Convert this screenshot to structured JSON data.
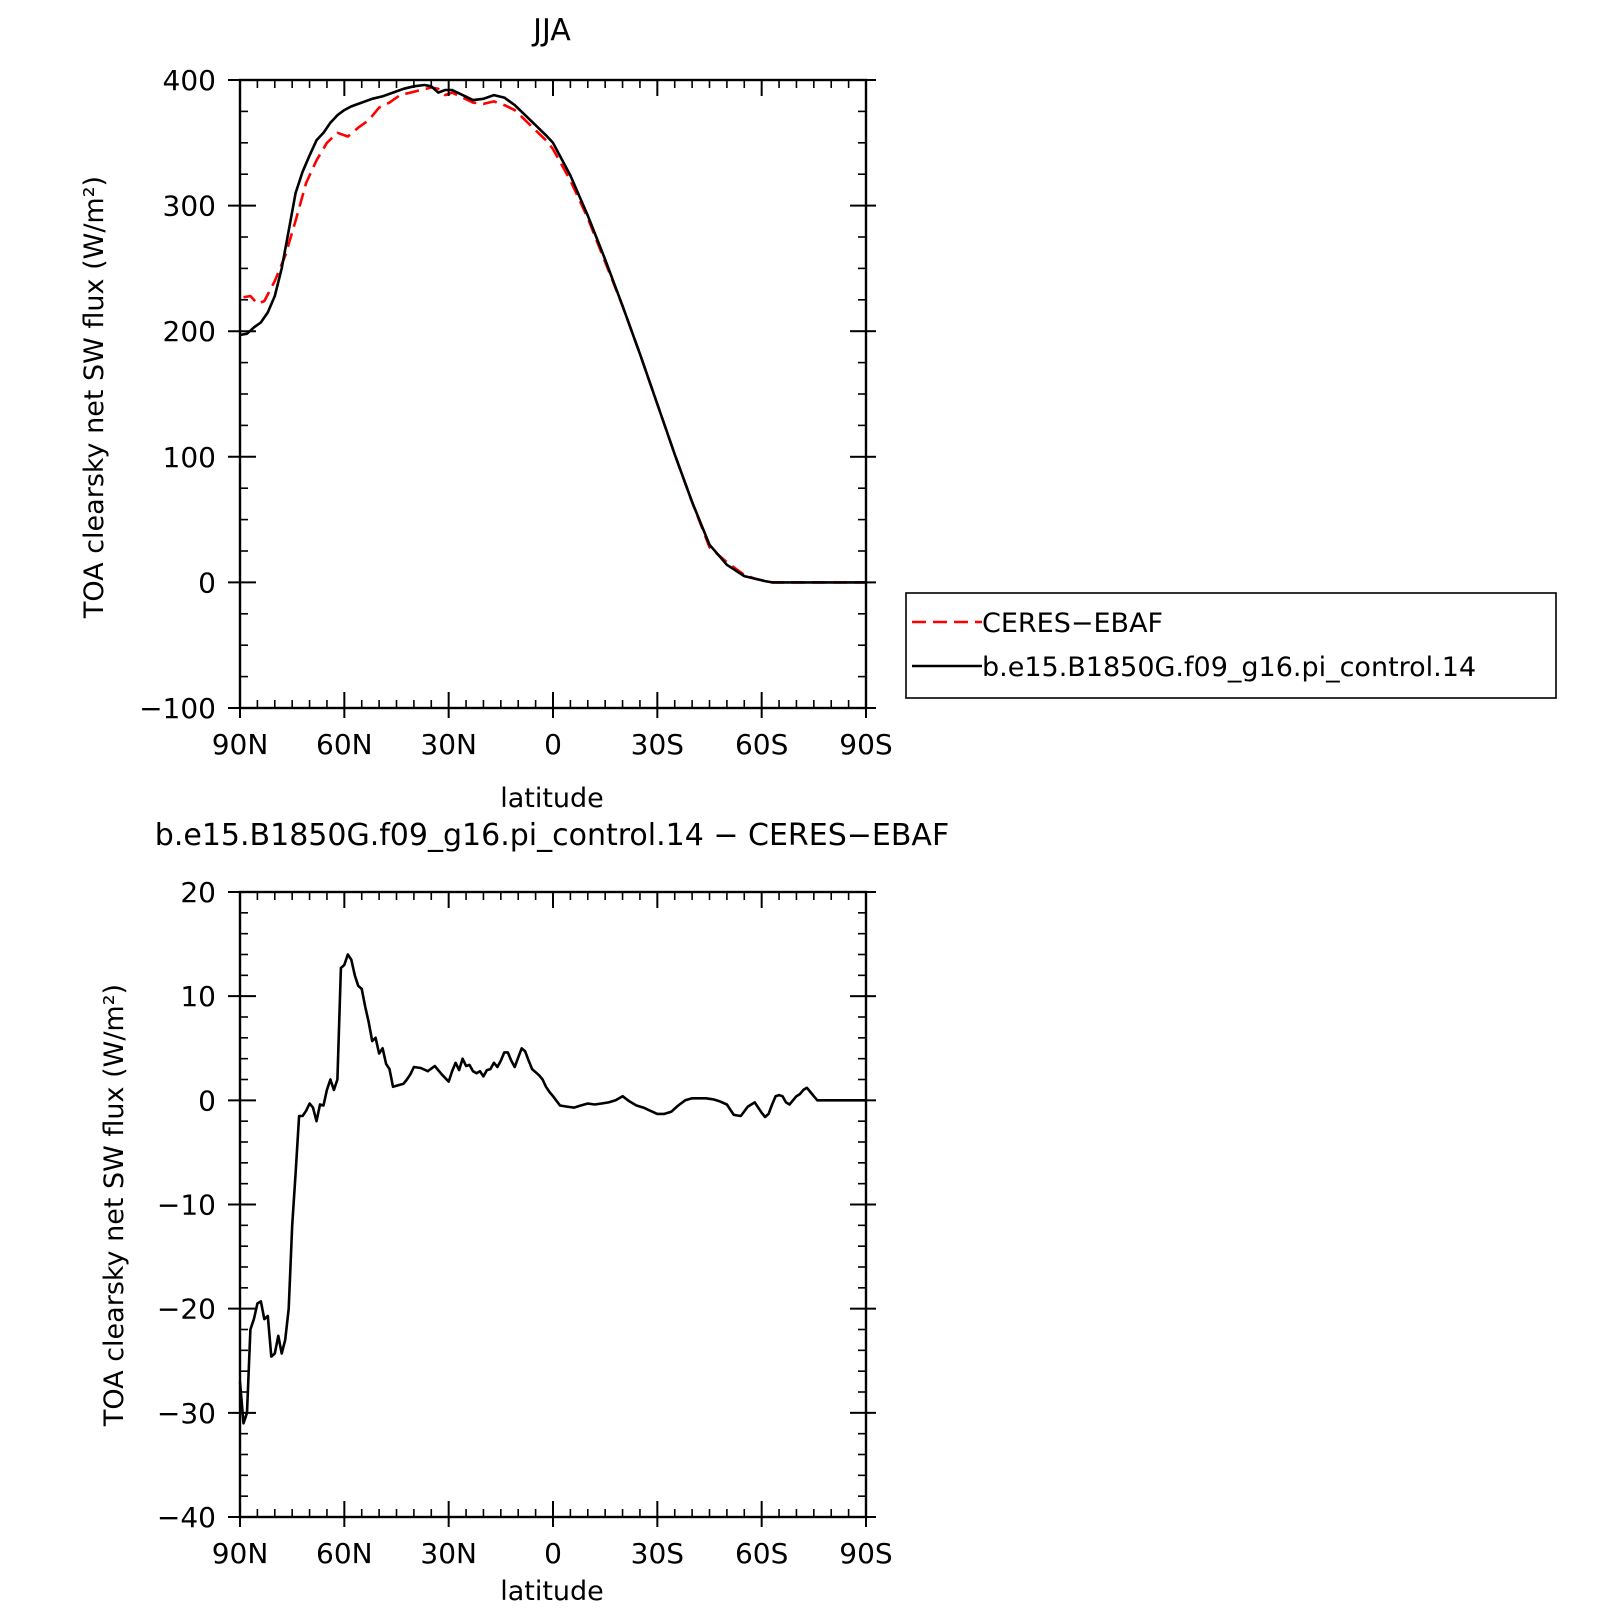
{
  "chart_data": [
    {
      "type": "line",
      "title": "JJA",
      "xlabel": "latitude",
      "ylabel": "TOA clearsky net SW flux (W/m²)",
      "xlim": [
        90,
        -90
      ],
      "ylim": [
        -100,
        400
      ],
      "x_ticks": [
        90,
        60,
        30,
        0,
        -30,
        -60,
        -90
      ],
      "x_tick_labels": [
        "90N",
        "60N",
        "30N",
        "0",
        "30S",
        "60S",
        "90S"
      ],
      "y_ticks": [
        -100,
        0,
        100,
        200,
        300,
        400
      ],
      "y_tick_labels": [
        "−100",
        "0",
        "100",
        "200",
        "300",
        "400"
      ],
      "grid": false,
      "legend": {
        "position": "right",
        "boxed": true
      },
      "series": [
        {
          "name": "CERES−EBAF",
          "color": "#ff0000",
          "dash": "dashed",
          "x": [
            89,
            87,
            85,
            83,
            80,
            77,
            74,
            71,
            68,
            65,
            62,
            59,
            56,
            53,
            50,
            47,
            44,
            41,
            38,
            35,
            33,
            31,
            29,
            26,
            23,
            20,
            17,
            14,
            11,
            8,
            5,
            2,
            0,
            -5,
            -10,
            -15,
            -20,
            -25,
            -30,
            -35,
            -40,
            -45,
            -50,
            -55,
            -58,
            -61,
            -63,
            -65,
            -68,
            -72,
            -76,
            -80,
            -85,
            -90
          ],
          "y": [
            227,
            228,
            222,
            224,
            240,
            260,
            288,
            318,
            336,
            350,
            358,
            355,
            362,
            368,
            378,
            382,
            388,
            390,
            392,
            394,
            393,
            388,
            390,
            386,
            382,
            381,
            383,
            380,
            376,
            368,
            360,
            352,
            345,
            320,
            290,
            255,
            220,
            182,
            142,
            102,
            64,
            28,
            16,
            6,
            3,
            1,
            0,
            0,
            0,
            0,
            0,
            0,
            0,
            0
          ]
        },
        {
          "name": "b.e15.B1850G.f09_g16.pi_control.14",
          "color": "#000000",
          "dash": "solid",
          "x": [
            90,
            88,
            86,
            84,
            82,
            80,
            78,
            76,
            74,
            72,
            70,
            68,
            66,
            64,
            62,
            60,
            58,
            55,
            52,
            49,
            46,
            43,
            40,
            37,
            35,
            33,
            31,
            29,
            26,
            23,
            20,
            17,
            14,
            11,
            8,
            5,
            2,
            0,
            -5,
            -10,
            -15,
            -20,
            -25,
            -30,
            -35,
            -40,
            -45,
            -50,
            -55,
            -58,
            -61,
            -63,
            -65,
            -68,
            -72,
            -76,
            -80,
            -85,
            -90
          ],
          "y": [
            197,
            198,
            203,
            207,
            215,
            228,
            250,
            280,
            310,
            327,
            340,
            352,
            358,
            366,
            372,
            376,
            379,
            382,
            385,
            387,
            390,
            393,
            395,
            396,
            395,
            390,
            392,
            392,
            388,
            384,
            385,
            388,
            386,
            380,
            372,
            364,
            356,
            350,
            324,
            292,
            257,
            220,
            182,
            142,
            102,
            64,
            30,
            14,
            5,
            3,
            1,
            0,
            0,
            0,
            0,
            0,
            0,
            0,
            0
          ]
        }
      ]
    },
    {
      "type": "line",
      "title": "b.e15.B1850G.f09_g16.pi_control.14 − CERES−EBAF",
      "xlabel": "latitude",
      "ylabel": "TOA clearsky net SW flux (W/m²)",
      "xlim": [
        90,
        -90
      ],
      "ylim": [
        -40,
        20
      ],
      "x_ticks": [
        90,
        60,
        30,
        0,
        -30,
        -60,
        -90
      ],
      "x_tick_labels": [
        "90N",
        "60N",
        "30N",
        "0",
        "30S",
        "60S",
        "90S"
      ],
      "y_ticks": [
        -40,
        -30,
        -20,
        -10,
        0,
        10,
        20
      ],
      "y_tick_labels": [
        "−40",
        "−30",
        "−20",
        "−10",
        "0",
        "10",
        "20"
      ],
      "grid": false,
      "series": [
        {
          "color": "#000000",
          "dash": "solid",
          "x": [
            90,
            89,
            88,
            87,
            86,
            85,
            84,
            83,
            82,
            81,
            80,
            79,
            78,
            77,
            76,
            75,
            74,
            73,
            72,
            71,
            70,
            69,
            68,
            67,
            66,
            65,
            64,
            63,
            62,
            61,
            60,
            59,
            58,
            57,
            56,
            55,
            54,
            53,
            52,
            51,
            50,
            49,
            48,
            47,
            46,
            45,
            44,
            43,
            42,
            41,
            40,
            38,
            36,
            34,
            32,
            30,
            29,
            28,
            27,
            26,
            25,
            24,
            23,
            22,
            21,
            20,
            19,
            18,
            17,
            16,
            15,
            14,
            13,
            12,
            11,
            10,
            9,
            8,
            7,
            6,
            5,
            4,
            3,
            2,
            1,
            0,
            -2,
            -4,
            -6,
            -8,
            -10,
            -12,
            -14,
            -16,
            -18,
            -20,
            -22,
            -24,
            -26,
            -28,
            -30,
            -32,
            -34,
            -36,
            -38,
            -40,
            -42,
            -44,
            -46,
            -48,
            -50,
            -52,
            -54,
            -56,
            -58,
            -60,
            -61,
            -62,
            -63,
            -64,
            -65,
            -66,
            -67,
            -68,
            -69,
            -70,
            -71,
            -72,
            -73,
            -74,
            -75,
            -76,
            -78,
            -80,
            -85,
            -90
          ],
          "y": [
            -27,
            -31,
            -30,
            -22,
            -21,
            -19.5,
            -19.3,
            -21,
            -20.7,
            -24.6,
            -24.3,
            -22.6,
            -24.3,
            -23,
            -20,
            -12,
            -7,
            -1.5,
            -1.5,
            -1,
            -0.3,
            -0.7,
            -2,
            -0.4,
            -0.5,
            1,
            2,
            1,
            2,
            12.7,
            13,
            14,
            13.5,
            12,
            11,
            10.7,
            9,
            7.5,
            5.7,
            6,
            4.5,
            5,
            3.5,
            3,
            1.3,
            1.4,
            1.5,
            1.6,
            2,
            2.5,
            3.2,
            3.1,
            2.8,
            3.3,
            2.5,
            1.8,
            2.8,
            3.6,
            2.9,
            4,
            3.3,
            3.4,
            2.8,
            2.6,
            2.8,
            2.3,
            2.9,
            3.0,
            3.6,
            3.2,
            3.8,
            4.6,
            4.6,
            3.8,
            3.2,
            4.1,
            5.0,
            4.7,
            3.8,
            3.0,
            2.7,
            2.4,
            2.0,
            1.3,
            0.8,
            0.4,
            -0.5,
            -0.6,
            -0.7,
            -0.5,
            -0.3,
            -0.4,
            -0.3,
            -0.2,
            0.0,
            0.4,
            -0.1,
            -0.5,
            -0.7,
            -1.0,
            -1.3,
            -1.3,
            -1.1,
            -0.5,
            0.0,
            0.2,
            0.2,
            0.2,
            0.1,
            -0.1,
            -0.4,
            -1.4,
            -1.5,
            -0.6,
            -0.2,
            -1.2,
            -1.6,
            -1.3,
            -0.4,
            0.4,
            0.5,
            0.4,
            -0.2,
            -0.4,
            0.0,
            0.4,
            0.6,
            1.0,
            1.2,
            0.8,
            0.4,
            0.0,
            0.0,
            0.0,
            0.0,
            0.0
          ]
        }
      ]
    }
  ]
}
